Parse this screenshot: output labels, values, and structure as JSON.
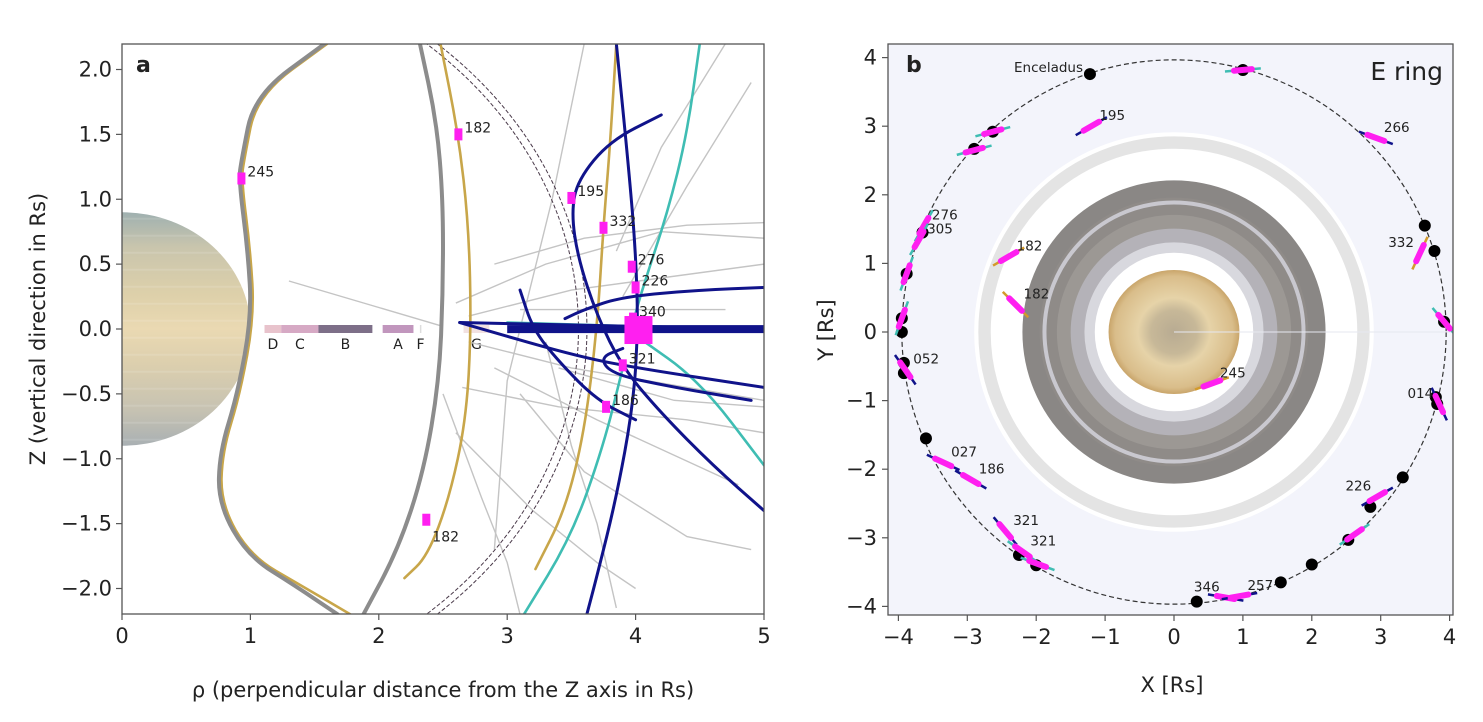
{
  "chart_data": [
    {
      "type": "line",
      "panel": "a",
      "title": "",
      "xlabel": "ρ (perpendicular distance from the Z axis in Rs)",
      "ylabel": "Z (vertical direction in Rs)",
      "xlim": [
        0,
        5
      ],
      "ylim": [
        -2.2,
        2.2
      ],
      "xticks": [
        0,
        1,
        2,
        3,
        4,
        5
      ],
      "xtick_labels": [
        "0",
        "1",
        "2",
        "3",
        "4",
        "5"
      ],
      "yticks": [
        2.0,
        1.5,
        1.0,
        0.5,
        0.0,
        -0.5,
        -1.0,
        -1.5,
        -2.0
      ],
      "ytick_labels": [
        "2.0",
        "1.5",
        "1.0",
        "0.5",
        "0.0",
        "−0.5",
        "−1.0",
        "−1.5",
        "−2.0"
      ],
      "grid": false,
      "planet": {
        "name": "Saturn",
        "radius": 1.0
      },
      "rings": [
        {
          "name": "D",
          "r": [
            1.11,
            1.24
          ],
          "color": "#e8c3cc"
        },
        {
          "name": "C",
          "r": [
            1.24,
            1.53
          ],
          "color": "#d6a9c4"
        },
        {
          "name": "B",
          "r": [
            1.53,
            1.95
          ],
          "color": "#7d6f88"
        },
        {
          "name": "A",
          "r": [
            2.03,
            2.27
          ],
          "color": "#c196bd"
        },
        {
          "name": "F",
          "r": [
            2.32,
            2.33
          ],
          "color": "#dddddd"
        },
        {
          "name": "G",
          "r": [
            2.66,
            2.86
          ],
          "color": "#f2e1e1"
        }
      ],
      "enceladus_orbit_arcs": [
        {
          "radius": 3.95
        },
        {
          "radius": 3.99
        }
      ],
      "series": [
        {
          "name": "field-line-gold-inner",
          "color": "#c8a64a",
          "points": [
            [
              1.6,
              2.2
            ],
            [
              1.05,
              1.8
            ],
            [
              0.95,
              1.3
            ],
            [
              0.93,
              1.15
            ],
            [
              1.0,
              0.6
            ],
            [
              1.03,
              0.1
            ],
            [
              0.92,
              -0.5
            ],
            [
              0.78,
              -0.95
            ],
            [
              0.77,
              -1.35
            ],
            [
              1.0,
              -1.75
            ],
            [
              1.4,
              -1.98
            ],
            [
              1.78,
              -2.2
            ]
          ]
        },
        {
          "name": "field-line-gray-inner",
          "color": "#8c8c8c",
          "points": [
            [
              1.58,
              2.2
            ],
            [
              1.03,
              1.8
            ],
            [
              0.93,
              1.3
            ],
            [
              0.91,
              1.15
            ],
            [
              0.98,
              0.6
            ],
            [
              1.01,
              0.1
            ],
            [
              0.9,
              -0.5
            ],
            [
              0.76,
              -0.95
            ],
            [
              0.75,
              -1.35
            ],
            [
              0.98,
              -1.75
            ],
            [
              1.35,
              -1.98
            ],
            [
              1.68,
              -2.2
            ]
          ]
        },
        {
          "name": "field-line-gray-mid",
          "color": "#8c8c8c",
          "points": [
            [
              2.32,
              2.2
            ],
            [
              2.45,
              1.6
            ],
            [
              2.5,
              1.0
            ],
            [
              2.5,
              0.3
            ],
            [
              2.47,
              -0.4
            ],
            [
              2.35,
              -1.1
            ],
            [
              2.15,
              -1.7
            ],
            [
              1.88,
              -2.2
            ]
          ]
        },
        {
          "name": "field-line-gold-mid",
          "color": "#c8a64a",
          "points": [
            [
              2.48,
              2.2
            ],
            [
              2.62,
              1.5
            ],
            [
              2.7,
              0.8
            ],
            [
              2.72,
              0.0
            ],
            [
              2.68,
              -0.7
            ],
            [
              2.55,
              -1.3
            ],
            [
              2.38,
              -1.75
            ],
            [
              2.2,
              -1.92
            ]
          ]
        },
        {
          "name": "field-line-gold-outer",
          "color": "#c8a64a",
          "points": [
            [
              3.85,
              2.2
            ],
            [
              3.8,
              1.4
            ],
            [
              3.75,
              0.8
            ],
            [
              3.7,
              0.0
            ],
            [
              3.6,
              -0.8
            ],
            [
              3.45,
              -1.4
            ],
            [
              3.22,
              -1.85
            ]
          ]
        },
        {
          "name": "field-line-teal-1",
          "color": "#3fbdb3",
          "points": [
            [
              4.5,
              2.2
            ],
            [
              4.4,
              1.5
            ],
            [
              4.25,
              0.9
            ],
            [
              4.05,
              0.3
            ],
            [
              3.98,
              0.05
            ]
          ]
        },
        {
          "name": "field-line-teal-2",
          "color": "#3fbdb3",
          "points": [
            [
              3.9,
              -0.3
            ],
            [
              3.75,
              -0.9
            ],
            [
              3.5,
              -1.6
            ],
            [
              3.13,
              -2.2
            ]
          ]
        },
        {
          "name": "field-line-teal-3",
          "color": "#3fbdb3",
          "points": [
            [
              3.0,
              0.05
            ],
            [
              4.0,
              0.02
            ],
            [
              5.0,
              0.0
            ]
          ]
        },
        {
          "name": "field-line-teal-4",
          "color": "#3fbdb3",
          "points": [
            [
              4.0,
              -0.05
            ],
            [
              4.5,
              -0.4
            ],
            [
              5.0,
              -1.05
            ]
          ]
        },
        {
          "name": "field-line-navy-1",
          "color": "#10138a",
          "points": [
            [
              3.85,
              2.2
            ],
            [
              3.95,
              1.2
            ],
            [
              4.0,
              0.6
            ],
            [
              4.02,
              0.0
            ],
            [
              3.98,
              -0.6
            ],
            [
              3.85,
              -1.3
            ],
            [
              3.7,
              -1.9
            ],
            [
              3.62,
              -2.2
            ]
          ]
        },
        {
          "name": "field-line-navy-2",
          "color": "#10138a",
          "points": [
            [
              4.2,
              1.65
            ],
            [
              3.8,
              1.45
            ],
            [
              3.55,
              1.15
            ],
            [
              3.5,
              0.9
            ],
            [
              3.55,
              0.55
            ],
            [
              3.7,
              0.1
            ],
            [
              3.9,
              -0.3
            ],
            [
              4.2,
              -0.65
            ],
            [
              4.6,
              -1.05
            ],
            [
              5.0,
              -1.4
            ]
          ]
        },
        {
          "name": "field-line-navy-3",
          "color": "#10138a",
          "points": [
            [
              3.45,
              0.08
            ],
            [
              3.6,
              0.15
            ],
            [
              3.9,
              0.25
            ],
            [
              4.5,
              0.3
            ],
            [
              5.0,
              0.32
            ]
          ]
        },
        {
          "name": "field-line-navy-4",
          "color": "#10138a",
          "points": [
            [
              2.63,
              0.05
            ],
            [
              3.5,
              0.03
            ],
            [
              5.0,
              0.0
            ]
          ]
        },
        {
          "name": "field-line-navy-5",
          "color": "#10138a",
          "points": [
            [
              2.63,
              0.05
            ],
            [
              3.5,
              -0.2
            ],
            [
              4.0,
              -0.3
            ],
            [
              5.0,
              -0.45
            ]
          ]
        },
        {
          "name": "field-line-navy-6",
          "color": "#10138a",
          "points": [
            [
              3.9,
              -0.15
            ],
            [
              3.72,
              -0.22
            ],
            [
              3.82,
              -0.35
            ],
            [
              4.3,
              -0.45
            ],
            [
              4.9,
              -0.55
            ]
          ]
        },
        {
          "name": "field-line-navy-7",
          "color": "#10138a",
          "points": [
            [
              3.1,
              0.3
            ],
            [
              3.2,
              0.0
            ],
            [
              3.4,
              -0.25
            ],
            [
              3.7,
              -0.55
            ],
            [
              4.0,
              -0.7
            ]
          ]
        }
      ],
      "crossings": [
        {
          "label": "245",
          "rho": 0.93,
          "z": 1.16
        },
        {
          "label": "182",
          "rho": 2.62,
          "z": 1.5
        },
        {
          "label": "195",
          "rho": 3.5,
          "z": 1.01
        },
        {
          "label": "332",
          "rho": 3.75,
          "z": 0.78
        },
        {
          "label": "276",
          "rho": 3.97,
          "z": 0.48
        },
        {
          "label": "226",
          "rho": 4.0,
          "z": 0.32
        },
        {
          "label": "340",
          "rho": 3.98,
          "z": 0.08
        },
        {
          "label": "321",
          "rho": 3.9,
          "z": -0.28
        },
        {
          "label": "186",
          "rho": 3.77,
          "z": -0.6
        },
        {
          "label": "182",
          "rho": 2.37,
          "z": -1.47
        }
      ]
    },
    {
      "type": "scatter",
      "panel": "b",
      "title": "E ring",
      "xlabel": "X [Rs]",
      "ylabel": "Y [Rs]",
      "xlim": [
        -4.2,
        4.2
      ],
      "ylim": [
        -4.2,
        4.2
      ],
      "xticks": [
        -4,
        -3,
        -2,
        -1,
        0,
        1,
        2,
        3,
        4
      ],
      "xtick_labels": [
        "−4",
        "−3",
        "−2",
        "−1",
        "0",
        "1",
        "2",
        "3",
        "4"
      ],
      "yticks": [
        4,
        3,
        2,
        1,
        0,
        -1,
        -2,
        -3,
        -4
      ],
      "ytick_labels": [
        "4",
        "3",
        "2",
        "1",
        "0",
        "−1",
        "−2",
        "−3",
        "−4"
      ],
      "grid": false,
      "background": "#f3f4fb",
      "enceladus_orbit_radius": 3.95,
      "enceladus_label": "Enceladus",
      "enceladus_positions": [
        [
          -1.22,
          3.76
        ],
        [
          -2.9,
          2.67
        ],
        [
          -2.63,
          2.92
        ],
        [
          -3.65,
          1.45
        ],
        [
          -3.88,
          0.85
        ],
        [
          -3.95,
          0.2
        ],
        [
          -3.95,
          0.0
        ],
        [
          -3.92,
          -0.45
        ],
        [
          -3.92,
          -0.6
        ],
        [
          -3.6,
          -1.55
        ],
        [
          -2.25,
          -3.25
        ],
        [
          -2.0,
          -3.4
        ],
        [
          0.33,
          -3.93
        ],
        [
          1.55,
          -3.65
        ],
        [
          2.0,
          -3.39
        ],
        [
          2.53,
          -3.03
        ],
        [
          2.85,
          -2.55
        ],
        [
          3.32,
          -2.12
        ],
        [
          3.8,
          -0.95
        ],
        [
          3.82,
          -1.05
        ],
        [
          3.92,
          0.15
        ],
        [
          3.78,
          1.18
        ],
        [
          3.64,
          1.55
        ],
        [
          1.0,
          3.82
        ]
      ],
      "flyby_segments": [
        {
          "label": "",
          "x": 1.0,
          "y": 3.82,
          "angle": 5,
          "color": "#3fbdb3"
        },
        {
          "label": "195",
          "x": -1.2,
          "y": 3.0,
          "angle": 30,
          "color": "#10138a"
        },
        {
          "label": "266",
          "x": 2.93,
          "y": 2.83,
          "angle": -20,
          "color": "#10138a"
        },
        {
          "label": "",
          "x": -2.63,
          "y": 2.92,
          "angle": 15,
          "color": "#3fbdb3"
        },
        {
          "label": "",
          "x": -2.9,
          "y": 2.65,
          "angle": 15,
          "color": "#3fbdb3"
        },
        {
          "label": "276",
          "x": -3.63,
          "y": 1.55,
          "angle": 60,
          "color": "#3fbdb3"
        },
        {
          "label": "305",
          "x": -3.7,
          "y": 1.35,
          "angle": 60,
          "color": "#3fbdb3"
        },
        {
          "label": "182",
          "x": -2.4,
          "y": 1.1,
          "angle": 30,
          "color": "#d39a2c"
        },
        {
          "label": "182",
          "x": -2.3,
          "y": 0.4,
          "angle": -45,
          "color": "#d39a2c"
        },
        {
          "label": "332",
          "x": 3.57,
          "y": 1.15,
          "angle": 65,
          "color": "#d39a2c"
        },
        {
          "label": "",
          "x": -3.88,
          "y": 0.85,
          "angle": 70,
          "color": "#3fbdb3"
        },
        {
          "label": "",
          "x": -3.95,
          "y": 0.2,
          "angle": 70,
          "color": "#3fbdb3"
        },
        {
          "label": "",
          "x": 3.92,
          "y": 0.15,
          "angle": -50,
          "color": "#3fbdb3"
        },
        {
          "label": "052",
          "x": -3.9,
          "y": -0.55,
          "angle": -55,
          "color": "#10138a"
        },
        {
          "label": "245",
          "x": 0.55,
          "y": -0.75,
          "angle": 20,
          "color": "#d39a2c"
        },
        {
          "label": "014",
          "x": 3.85,
          "y": -1.05,
          "angle": -65,
          "color": "#10138a"
        },
        {
          "label": "027",
          "x": -3.35,
          "y": -1.9,
          "angle": -25,
          "color": "#10138a"
        },
        {
          "label": "186",
          "x": -2.95,
          "y": -2.15,
          "angle": -30,
          "color": "#10138a"
        },
        {
          "label": "226",
          "x": 2.95,
          "y": -2.4,
          "angle": 30,
          "color": "#10138a"
        },
        {
          "label": "",
          "x": 2.62,
          "y": -2.95,
          "angle": 35,
          "color": "#3fbdb3"
        },
        {
          "label": "321",
          "x": -2.45,
          "y": -2.9,
          "angle": -50,
          "color": "#10138a"
        },
        {
          "label": "321",
          "x": -2.2,
          "y": -3.2,
          "angle": -35,
          "color": "#3fbdb3"
        },
        {
          "label": "",
          "x": -1.98,
          "y": -3.38,
          "angle": -20,
          "color": "#3fbdb3"
        },
        {
          "label": "346",
          "x": 0.75,
          "y": -3.87,
          "angle": -10,
          "color": "#10138a"
        },
        {
          "label": "257",
          "x": 0.95,
          "y": -3.85,
          "angle": 10,
          "color": "#10138a"
        }
      ]
    }
  ],
  "panels": {
    "a": {
      "letter": "a"
    },
    "b": {
      "letter": "b"
    }
  }
}
